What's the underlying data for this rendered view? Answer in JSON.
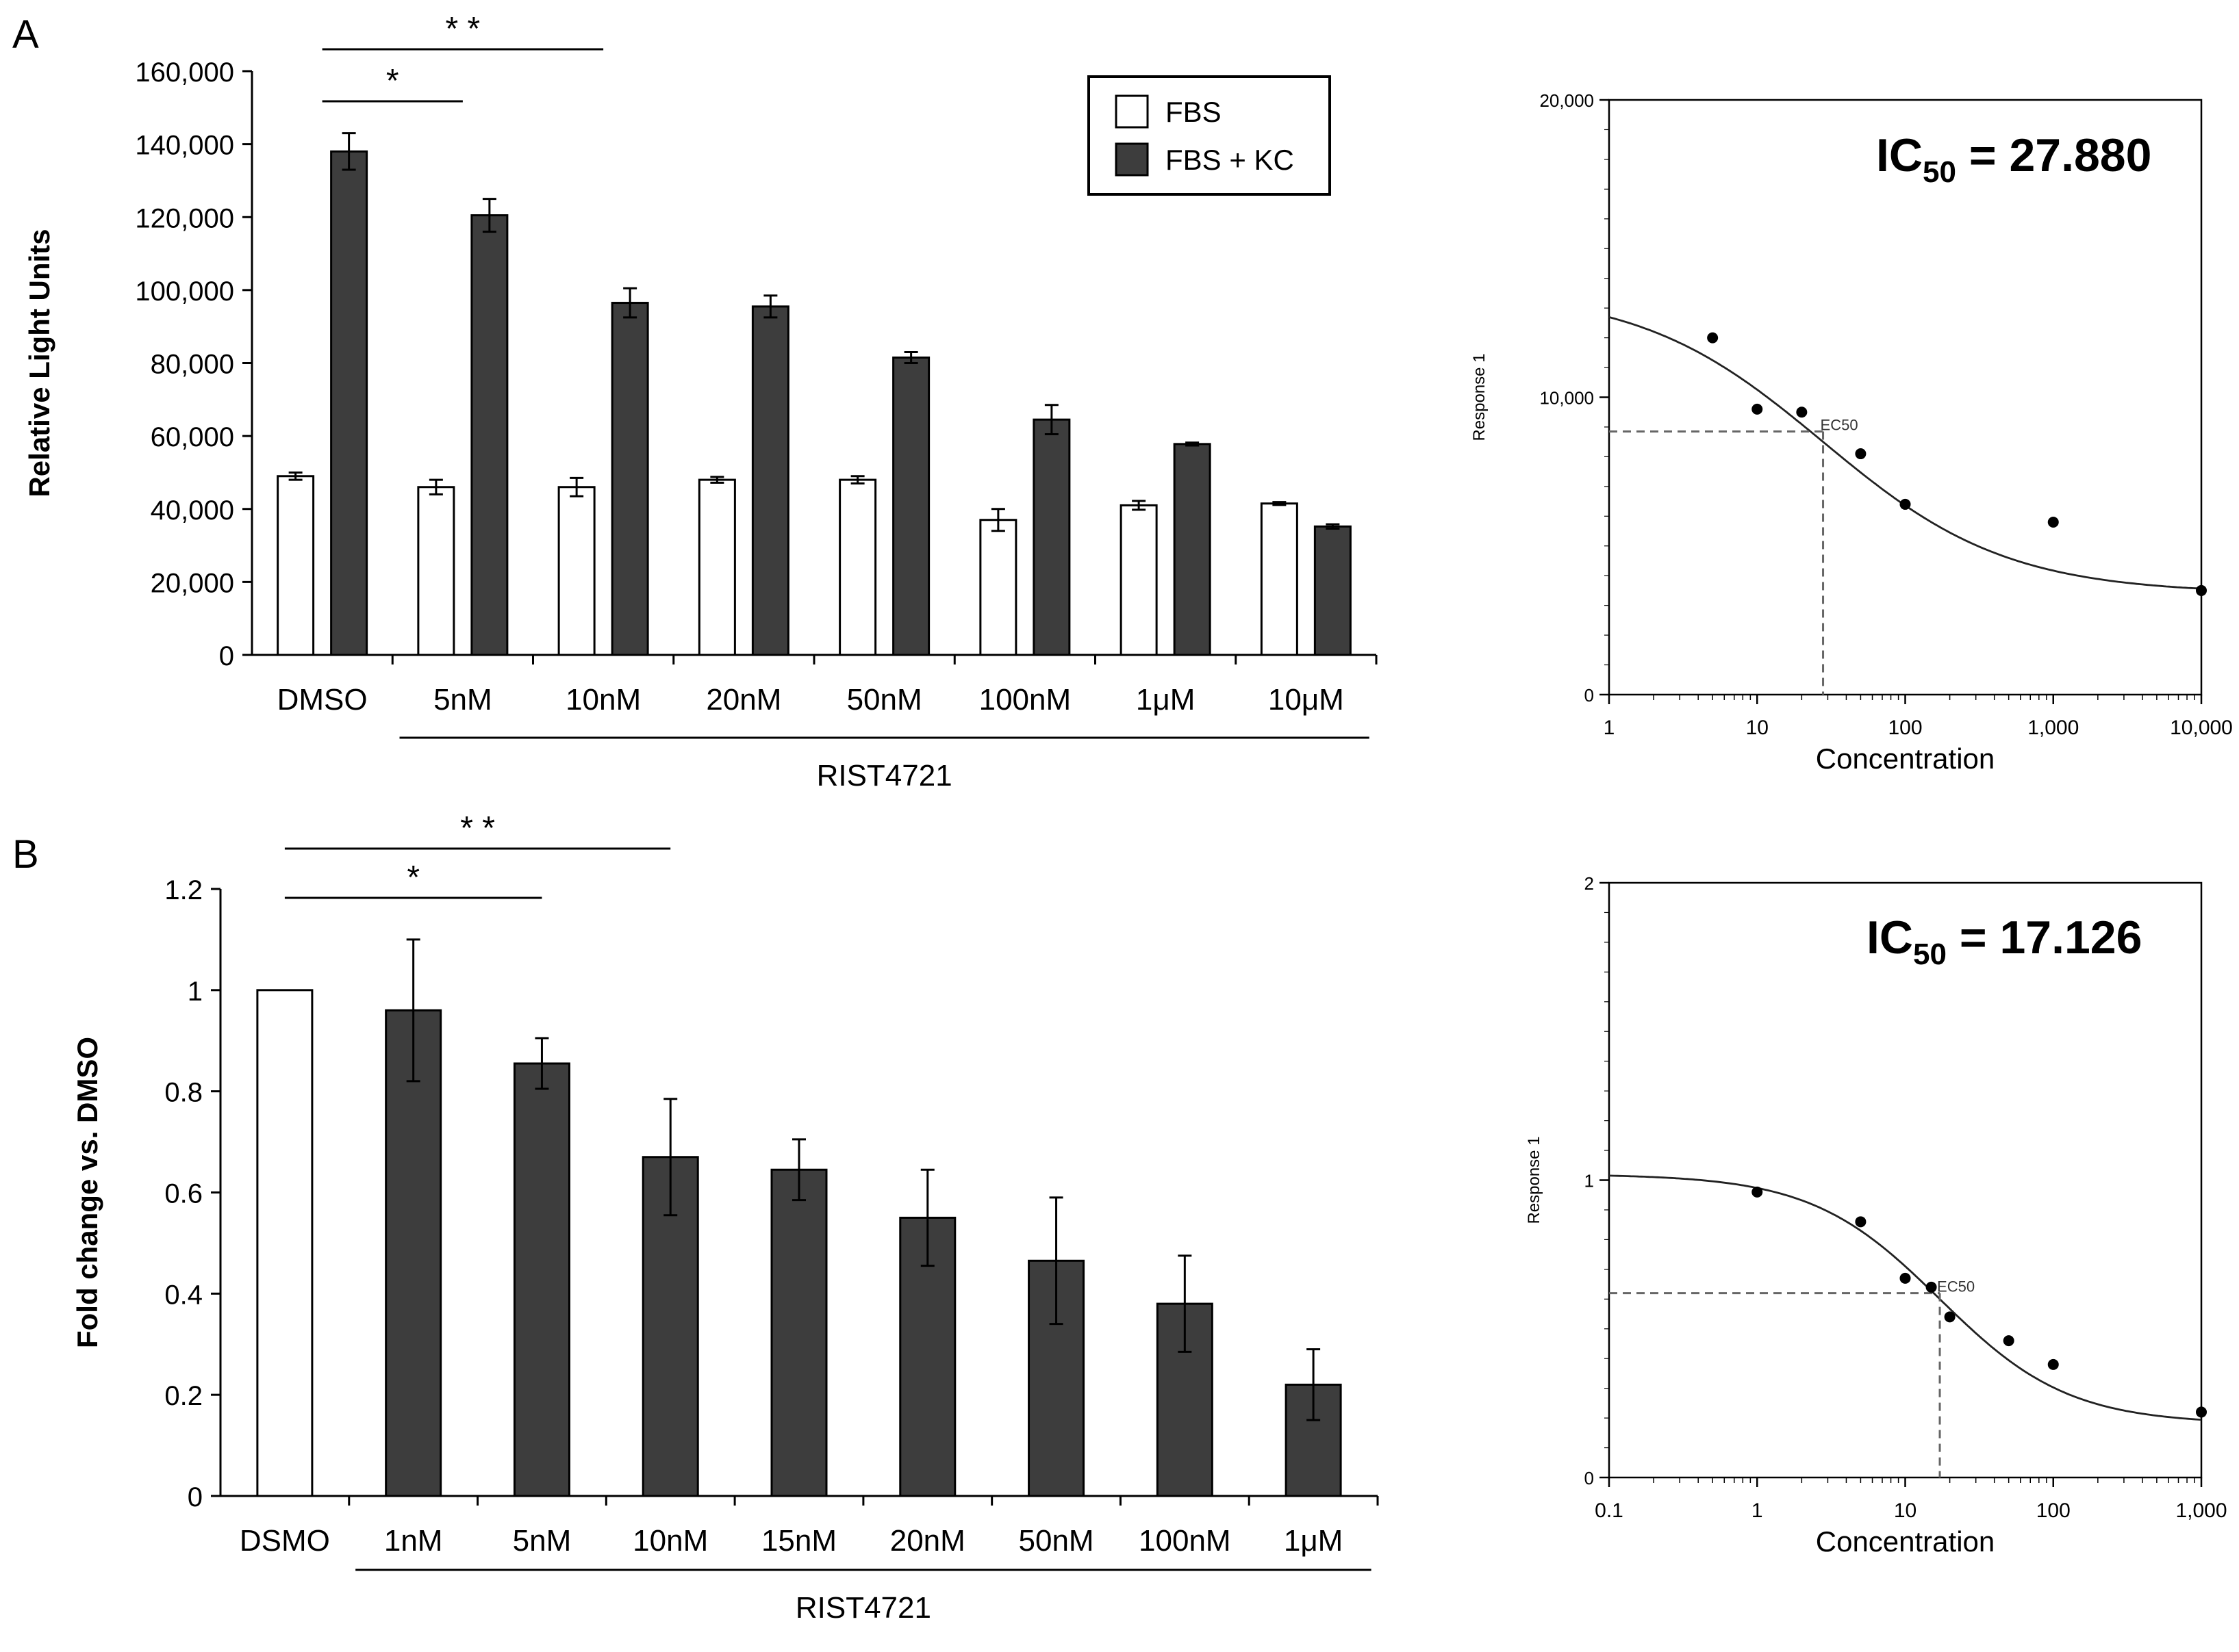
{
  "panels": {
    "a_label": "A",
    "b_label": "B"
  },
  "chart_data": [
    {
      "id": "A_bar",
      "type": "bar",
      "panel": "A",
      "ylabel": "Relative Light Units",
      "ylim": [
        0,
        160000
      ],
      "yticks": [
        "0",
        "20,000",
        "40,000",
        "60,000",
        "80,000",
        "100,000",
        "120,000",
        "140,000",
        "160,000"
      ],
      "categories": [
        "DMSO",
        "5nM",
        "10nM",
        "20nM",
        "50nM",
        "100nM",
        "1μM",
        "10μM"
      ],
      "series": [
        {
          "name": "FBS",
          "color": "#ffffff",
          "values": [
            49000,
            46000,
            46000,
            48000,
            48000,
            37000,
            41000,
            41500
          ],
          "errors": [
            1000,
            2000,
            2500,
            800,
            1000,
            3000,
            1200,
            400
          ]
        },
        {
          "name": "FBS + KC",
          "color": "#3d3d3d",
          "values": [
            138000,
            120500,
            96500,
            95500,
            81500,
            64500,
            57800,
            35200
          ],
          "errors": [
            5000,
            4500,
            4000,
            3000,
            1500,
            4000,
            400,
            600
          ]
        }
      ],
      "group_label": "RIST4721",
      "significance": [
        {
          "label": "*",
          "from": "DMSO",
          "to": "5nM"
        },
        {
          "label": "* *",
          "from": "DMSO",
          "to": "10nM"
        }
      ],
      "legend": "top-right"
    },
    {
      "id": "A_curve",
      "type": "scatter",
      "panel": "A",
      "xscale": "log",
      "xlabel": "Concentration",
      "ylabel": "Response 1",
      "xlim": [
        1,
        10000
      ],
      "ylim": [
        0,
        20000
      ],
      "xticks": [
        "1",
        "10",
        "100",
        "1,000",
        "10,000"
      ],
      "yticks": [
        "0",
        "10,000",
        "20,000"
      ],
      "x": [
        5,
        10,
        20,
        50,
        100,
        1000,
        10000
      ],
      "y": [
        12000,
        9600,
        9500,
        8100,
        6400,
        5800,
        3500
      ],
      "fit": {
        "top": 13600,
        "bottom": 3400,
        "ec50": 27.88,
        "hill": 0.7,
        "ec50_y": 8850
      },
      "ec50_label": "EC50",
      "ic50": {
        "prefix": "IC",
        "sub": "50",
        "value": "= 27.880"
      }
    },
    {
      "id": "B_bar",
      "type": "bar",
      "panel": "B",
      "ylabel": "Fold change vs. DMSO",
      "ylim": [
        0,
        1.2
      ],
      "yticks": [
        "0",
        "0.2",
        "0.4",
        "0.6",
        "0.8",
        "1",
        "1.2"
      ],
      "categories": [
        "DSMO",
        "1nM",
        "5nM",
        "10nM",
        "15nM",
        "20nM",
        "50nM",
        "100nM",
        "1μM"
      ],
      "values": [
        1.0,
        0.96,
        0.855,
        0.67,
        0.645,
        0.55,
        0.465,
        0.38,
        0.22
      ],
      "errors": [
        0,
        0.14,
        0.05,
        0.115,
        0.06,
        0.095,
        0.125,
        0.095,
        0.07
      ],
      "colors": [
        "#ffffff",
        "#3d3d3d",
        "#3d3d3d",
        "#3d3d3d",
        "#3d3d3d",
        "#3d3d3d",
        "#3d3d3d",
        "#3d3d3d",
        "#3d3d3d"
      ],
      "group_label": "RIST4721",
      "significance": [
        {
          "label": "*",
          "from": "DSMO",
          "to": "5nM"
        },
        {
          "label": "* *",
          "from": "DSMO",
          "to": "10nM"
        }
      ]
    },
    {
      "id": "B_curve",
      "type": "scatter",
      "panel": "B",
      "xscale": "log",
      "xlabel": "Concentration",
      "ylabel": "Response 1",
      "xlim": [
        0.1,
        1000
      ],
      "ylim": [
        0,
        2
      ],
      "xticks": [
        "0.1",
        "1",
        "10",
        "100",
        "1,000"
      ],
      "yticks": [
        "0",
        "1",
        "2"
      ],
      "x": [
        1,
        5,
        10,
        15,
        20,
        50,
        100,
        1000
      ],
      "y": [
        0.96,
        0.86,
        0.67,
        0.64,
        0.54,
        0.46,
        0.38,
        0.22
      ],
      "fit": {
        "top": 1.02,
        "bottom": 0.18,
        "ec50": 17.126,
        "hill": 1.0,
        "ec50_y": 0.62
      },
      "ec50_label": "EC50",
      "ic50": {
        "prefix": "IC",
        "sub": "50",
        "value": "= 17.126"
      }
    }
  ]
}
